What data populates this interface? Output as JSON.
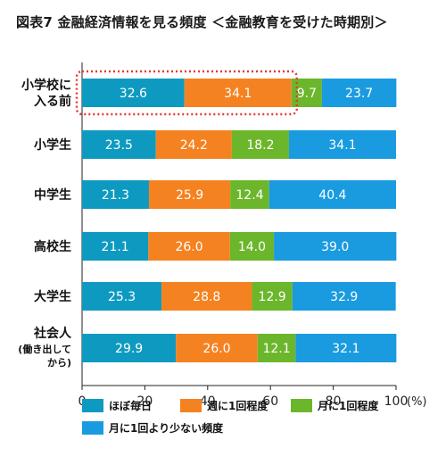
{
  "title": "図表7 金融経済情報を見る頻度 ＜金融教育を受けた時期別＞",
  "colors": {
    "daily": "#0e9ac0",
    "weekly": "#f58220",
    "monthly": "#6cb62c",
    "less": "#1a9be0",
    "highlight": "#e53935"
  },
  "chart_data": {
    "type": "bar",
    "orientation": "horizontal",
    "stacked": true,
    "title": "図表7 金融経済情報を見る頻度 ＜金融教育を受けた時期別＞",
    "categories": [
      {
        "label": "小学校に入る前",
        "lines": [
          "小学校に",
          "入る前"
        ],
        "sub": []
      },
      {
        "label": "小学生",
        "lines": [
          "小学生"
        ],
        "sub": []
      },
      {
        "label": "中学生",
        "lines": [
          "中学生"
        ],
        "sub": []
      },
      {
        "label": "高校生",
        "lines": [
          "高校生"
        ],
        "sub": []
      },
      {
        "label": "大学生",
        "lines": [
          "大学生"
        ],
        "sub": []
      },
      {
        "label": "社会人(働き出してから)",
        "lines": [
          "社会人"
        ],
        "sub": [
          "(働き出して",
          "から)"
        ]
      }
    ],
    "series": [
      {
        "name": "ほぼ毎日",
        "values": [
          32.6,
          23.5,
          21.3,
          21.1,
          25.3,
          29.9
        ]
      },
      {
        "name": "週に1回程度",
        "values": [
          34.1,
          24.2,
          25.9,
          26.0,
          28.8,
          26.0
        ]
      },
      {
        "name": "月に1回程度",
        "values": [
          9.7,
          18.2,
          12.4,
          14.0,
          12.9,
          12.1
        ]
      },
      {
        "name": "月に1回より少ない頻度",
        "values": [
          23.7,
          34.1,
          40.4,
          39.0,
          32.9,
          32.1
        ]
      }
    ],
    "xlim": [
      0,
      100
    ],
    "xticks": [
      "0",
      "20",
      "40",
      "60",
      "80",
      "100"
    ],
    "xunit": "(%)",
    "legend_position": "bottom",
    "highlighted_category": "小学校に入る前"
  }
}
